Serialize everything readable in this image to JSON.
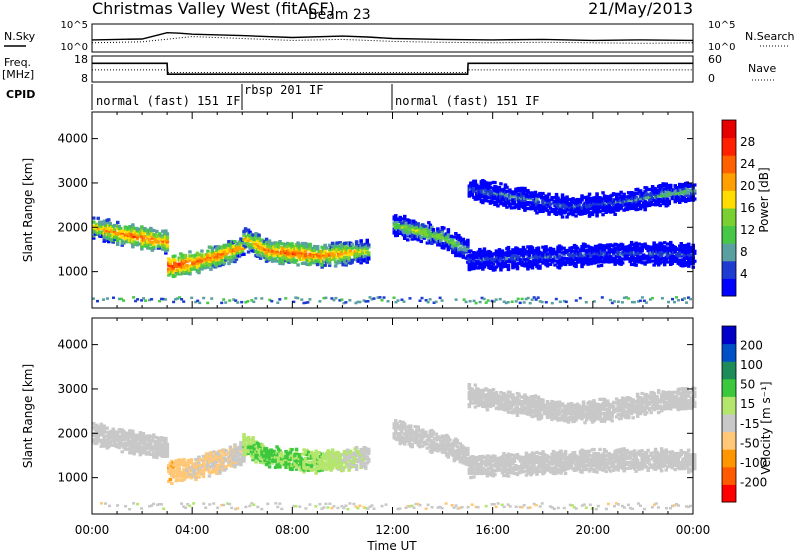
{
  "header": {
    "station": "Christmas Valley West (fitACF)",
    "beam": "Beam 23",
    "date": "21/May/2013"
  },
  "chart_data": [
    {
      "type": "line",
      "panel": "noise",
      "y_left_label": "N.Sky",
      "y_right_label": "N.Search",
      "y_ticks_left": [
        "10^5",
        "10^0"
      ],
      "y_ticks_right": [
        "10^5",
        "10^0"
      ],
      "series": [
        {
          "name": "N.Sky",
          "x": [
            0,
            1,
            2,
            3,
            3.5,
            4,
            6,
            8,
            10,
            11,
            12,
            14,
            16,
            18,
            20,
            22,
            24
          ],
          "y": [
            2.1,
            2.2,
            2.3,
            3.6,
            3.5,
            3.3,
            3.0,
            2.6,
            2.9,
            2.7,
            2.4,
            2.2,
            2.1,
            2.2,
            2.0,
            2.1,
            2.0
          ]
        },
        {
          "name": "N.Search",
          "x": [
            0,
            2,
            4,
            6,
            8,
            10,
            12,
            14,
            16,
            18,
            20,
            22,
            24
          ],
          "y": [
            1.5,
            1.7,
            2.8,
            2.4,
            2.0,
            2.2,
            1.8,
            1.6,
            1.5,
            1.6,
            1.5,
            1.4,
            1.5
          ]
        }
      ],
      "xlim": [
        0,
        24
      ]
    },
    {
      "type": "line",
      "panel": "frequency",
      "y_left_label_lines": [
        "Freq.",
        "[MHz]"
      ],
      "y_right_label": "Nave",
      "y_ticks_left": [
        "18",
        "8"
      ],
      "y_ticks_right": [
        "60",
        "0"
      ],
      "ylim_left": [
        8,
        18
      ],
      "ylim_right": [
        0,
        60
      ],
      "series": [
        {
          "name": "Freq.",
          "x": [
            0,
            3,
            3.02,
            15,
            15.02,
            24
          ],
          "y": [
            15.2,
            15.2,
            11.0,
            11.0,
            15.2,
            15.2
          ]
        },
        {
          "name": "Nave",
          "x": [
            0,
            3,
            3.02,
            15,
            15.02,
            24
          ],
          "y": [
            28,
            28,
            22,
            22,
            28,
            28
          ]
        }
      ],
      "xlim": [
        0,
        24
      ]
    },
    {
      "type": "table",
      "panel": "cpid",
      "label": "CPID",
      "segments": [
        {
          "start": 0,
          "end": 6,
          "name": "normal (fast) 151 IF"
        },
        {
          "start": 6,
          "end": 12,
          "name": "rbsp 201 IF"
        },
        {
          "start": 12,
          "end": 24,
          "name": "normal (fast) 151 IF"
        }
      ]
    },
    {
      "type": "heatmap",
      "panel": "power",
      "ylabel": "Slant Range [km]",
      "xlim": [
        0,
        24
      ],
      "ylim": [
        180,
        4600
      ],
      "y_ticks": [
        1000,
        2000,
        3000,
        4000
      ],
      "colorbar": {
        "label": "Power [dB]",
        "ticks": [
          "28",
          "24",
          "20",
          "16",
          "12",
          "8",
          "4"
        ],
        "colors": [
          "#0000ff",
          "#1e3cd2",
          "#5aa0a0",
          "#46c846",
          "#7ad030",
          "#ffdd00",
          "#ffa000",
          "#ff6000",
          "#ff2000",
          "#e60000"
        ]
      },
      "echo_bands": [
        {
          "x": [
            0,
            1,
            2,
            3
          ],
          "range": [
            2050,
            1900,
            1800,
            1700
          ],
          "power": [
            20,
            24,
            26,
            22
          ]
        },
        {
          "x": [
            3,
            4,
            5,
            6
          ],
          "range": [
            1150,
            1250,
            1400,
            1600
          ],
          "power": [
            28,
            26,
            24,
            22
          ]
        },
        {
          "x": [
            6,
            7,
            8,
            9,
            10,
            11
          ],
          "range": [
            1800,
            1500,
            1450,
            1400,
            1450,
            1500
          ],
          "power": [
            20,
            24,
            26,
            24,
            22,
            18
          ]
        },
        {
          "x": [
            12,
            13,
            14,
            15
          ],
          "range": [
            2100,
            1950,
            1800,
            1500
          ],
          "power": [
            14,
            18,
            16,
            12
          ]
        },
        {
          "x": [
            15,
            17,
            19,
            21,
            23,
            24
          ],
          "range": [
            1300,
            1350,
            1400,
            1450,
            1450,
            1400
          ],
          "power": [
            8,
            8,
            8,
            8,
            8,
            8
          ]
        },
        {
          "x": [
            15,
            17,
            19,
            21,
            23,
            24
          ],
          "range": [
            2900,
            2700,
            2500,
            2600,
            2800,
            2850
          ],
          "power": [
            8,
            10,
            8,
            8,
            12,
            12
          ]
        }
      ]
    },
    {
      "type": "heatmap",
      "panel": "velocity",
      "ylabel": "Slant Range [km]",
      "xlabel": "Time UT",
      "xlim": [
        0,
        24
      ],
      "ylim": [
        180,
        4600
      ],
      "x_ticks": [
        "00:00",
        "04:00",
        "08:00",
        "12:00",
        "16:00",
        "20:00",
        "00:00"
      ],
      "y_ticks": [
        1000,
        2000,
        3000,
        4000
      ],
      "colorbar": {
        "label": "Velocity [m s⁻¹]",
        "ticks": [
          "200",
          "100",
          "50",
          "15",
          "-15",
          "-50",
          "-100",
          "-200"
        ],
        "colors": [
          "#ff0000",
          "#ff5a00",
          "#ff9600",
          "#ffc878",
          "#c8c8c8",
          "#b4e66e",
          "#3cc83c",
          "#1e8c5a",
          "#0050c8",
          "#0000c8"
        ]
      },
      "echo_bands": [
        {
          "x": [
            0,
            1,
            2,
            3
          ],
          "range": [
            2050,
            1900,
            1800,
            1700
          ],
          "velocity": [
            0,
            0,
            0,
            0
          ]
        },
        {
          "x": [
            3,
            4,
            5,
            6
          ],
          "range": [
            1150,
            1250,
            1400,
            1600
          ],
          "velocity": [
            -40,
            -20,
            -20,
            0
          ]
        },
        {
          "x": [
            6,
            7,
            8,
            9,
            10,
            11
          ],
          "range": [
            1800,
            1500,
            1450,
            1400,
            1450,
            1500
          ],
          "velocity": [
            40,
            60,
            50,
            40,
            20,
            0
          ]
        },
        {
          "x": [
            12,
            13,
            14,
            15
          ],
          "range": [
            2100,
            1950,
            1800,
            1500
          ],
          "velocity": [
            0,
            0,
            0,
            0
          ]
        },
        {
          "x": [
            15,
            17,
            19,
            21,
            23,
            24
          ],
          "range": [
            1300,
            1350,
            1400,
            1450,
            1450,
            1400
          ],
          "velocity": [
            0,
            0,
            0,
            0,
            0,
            0
          ]
        },
        {
          "x": [
            15,
            17,
            19,
            21,
            23,
            24
          ],
          "range": [
            2900,
            2700,
            2500,
            2600,
            2800,
            2850
          ],
          "velocity": [
            0,
            0,
            0,
            0,
            0,
            0
          ]
        }
      ]
    }
  ]
}
